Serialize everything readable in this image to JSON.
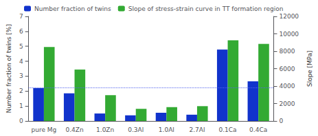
{
  "chart_data": {
    "type": "bar",
    "categories": [
      "pure Mg",
      "0.4Zn",
      "1.0Zn",
      "0.3Al",
      "1.0Al",
      "2.7Al",
      "0.1Ca",
      "0.4Ca"
    ],
    "series": [
      {
        "name": "Number fraction of twins",
        "color": "#1133cc",
        "axis": "y",
        "values": [
          2.2,
          1.85,
          0.5,
          0.38,
          0.55,
          0.42,
          4.78,
          2.65
        ]
      },
      {
        "name": "Slope of stress-strain curve in TT formation region",
        "color": "#33aa33",
        "axis": "y2",
        "values": [
          8500,
          5900,
          2970,
          1400,
          1580,
          1700,
          9250,
          8850
        ]
      }
    ],
    "ylabel": "Number fraction of twins [%]",
    "y2label": "Slope [MPa]",
    "ylim": [
      0,
      7
    ],
    "yticks": [
      0,
      1,
      2,
      3,
      4,
      5,
      6,
      7
    ],
    "y2lim": [
      0,
      12000
    ],
    "y2ticks": [
      0,
      2000,
      4000,
      6000,
      8000,
      10000,
      12000
    ],
    "reference_lines": [
      {
        "y": 2.25,
        "axis": "y",
        "color": "#5566ee",
        "line_style": "dotted"
      }
    ],
    "legend": "upper left",
    "grid": false
  }
}
